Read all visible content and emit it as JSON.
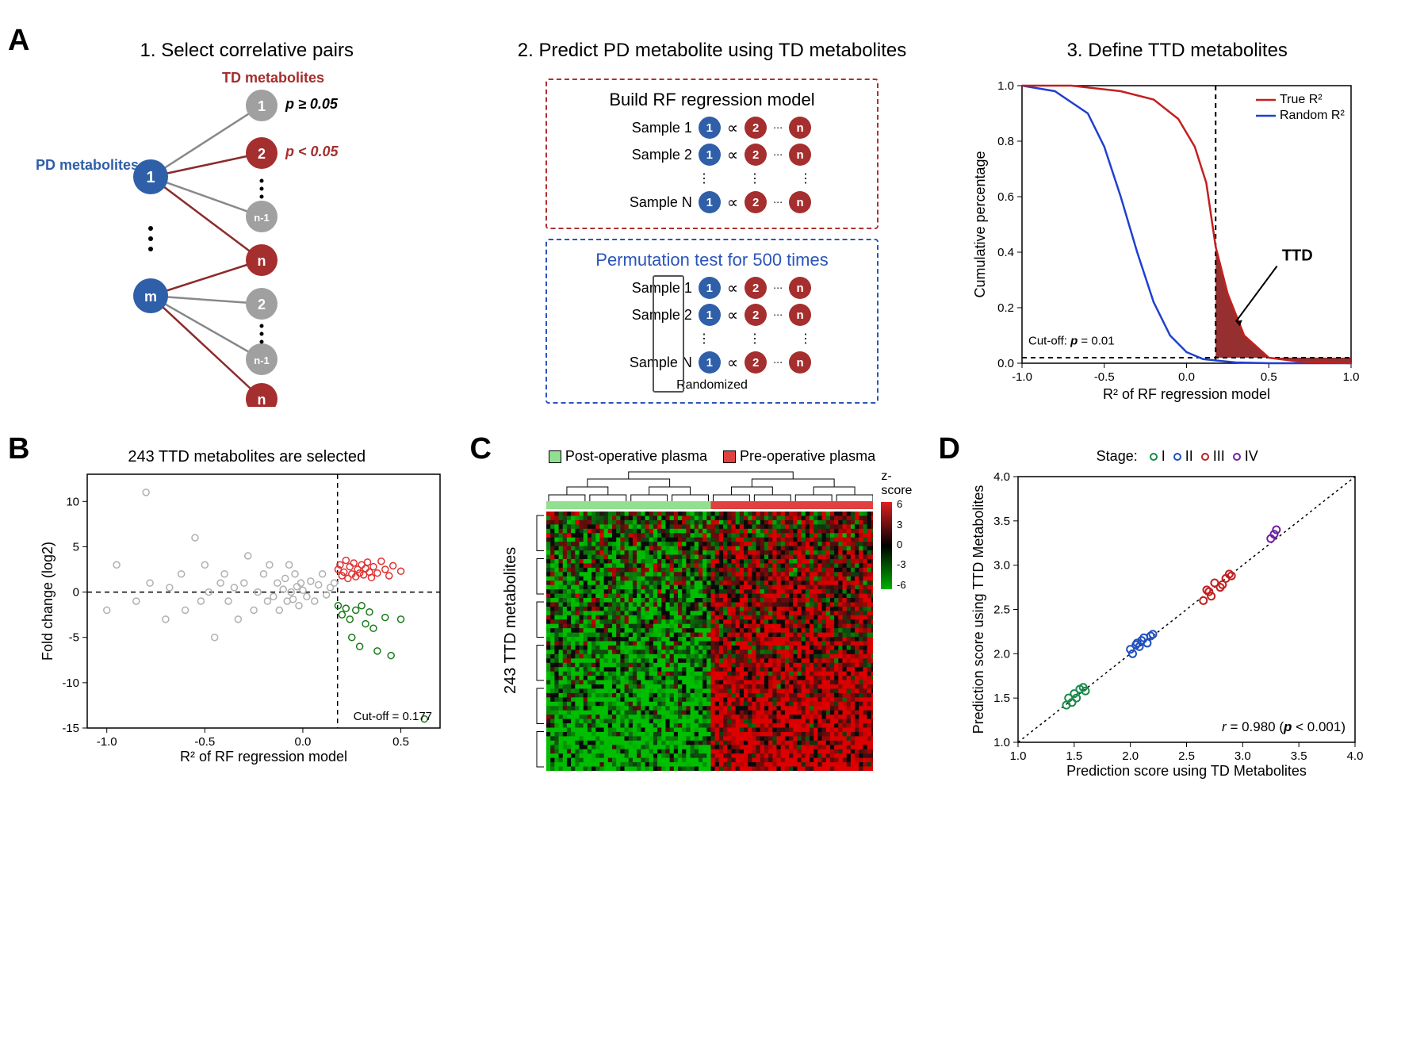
{
  "colors": {
    "blue_node": "#2f5fa8",
    "red_node": "#a52e2e",
    "grey_node": "#a0a0a0",
    "grey_line": "#888888",
    "sig_line": "#8b2b2b",
    "box_red": "#b03030",
    "box_blue": "#2b55b8",
    "true_curve": "#c22020",
    "random_curve": "#2040d0",
    "ttd_fill": "#8b1a1a",
    "scatter_grey": "#b0b0b0",
    "scatter_red": "#e03030",
    "scatter_green": "#1a7a1a",
    "stage_I": "#1a8a4a",
    "stage_II": "#2050c0",
    "stage_III": "#c02020",
    "stage_IV": "#7020a0",
    "hm_red": "#e02020",
    "hm_green": "#00a000",
    "hm_black": "#000000",
    "post_op": "#90e090",
    "pre_op": "#e04040"
  },
  "panelA": {
    "label": "A",
    "step1": {
      "title": "1. Select correlative pairs",
      "pd_label": "PD metabolites",
      "td_label": "TD metabolites",
      "p_ge": "p ≥ 0.05",
      "p_lt": "p < 0.05",
      "node_labels": [
        "1",
        "2",
        "n-1",
        "n",
        "m"
      ]
    },
    "step2": {
      "title": "2. Predict PD metabolite using TD metabolites",
      "box1_title": "Build RF regression model",
      "box2_title": "Permutation test for 500 times",
      "samples": [
        "Sample 1",
        "Sample 2",
        "Sample N"
      ],
      "randomized": "Randomized"
    },
    "step3": {
      "title": "3. Define TTD metabolites",
      "ylabel": "Cumulative percentage",
      "xlabel": "R² of RF regression model",
      "legend_true": "True R²",
      "legend_random": "Random R²",
      "ttd_label": "TTD",
      "cutoff_label": "Cut-off: p = 0.01",
      "xlim": [
        -1.0,
        1.0
      ],
      "ylim": [
        0.0,
        1.0
      ],
      "xticks": [
        -1.0,
        -0.5,
        0.0,
        0.5,
        1.0
      ],
      "yticks": [
        0.0,
        0.2,
        0.4,
        0.6,
        0.8,
        1.0
      ],
      "cutoff_x": 0.177,
      "cutoff_y": 0.02,
      "true_curve": [
        [
          -1.0,
          1.0
        ],
        [
          -0.7,
          1.0
        ],
        [
          -0.4,
          0.98
        ],
        [
          -0.2,
          0.95
        ],
        [
          -0.05,
          0.88
        ],
        [
          0.05,
          0.78
        ],
        [
          0.12,
          0.65
        ],
        [
          0.177,
          0.42
        ],
        [
          0.25,
          0.25
        ],
        [
          0.35,
          0.1
        ],
        [
          0.5,
          0.02
        ],
        [
          0.7,
          0.005
        ],
        [
          1.0,
          0.0
        ]
      ],
      "random_curve": [
        [
          -1.0,
          1.0
        ],
        [
          -0.8,
          0.98
        ],
        [
          -0.6,
          0.9
        ],
        [
          -0.5,
          0.78
        ],
        [
          -0.4,
          0.6
        ],
        [
          -0.3,
          0.4
        ],
        [
          -0.2,
          0.22
        ],
        [
          -0.1,
          0.1
        ],
        [
          0.0,
          0.04
        ],
        [
          0.1,
          0.015
        ],
        [
          0.177,
          0.01
        ],
        [
          0.3,
          0.003
        ],
        [
          0.5,
          0.0
        ],
        [
          1.0,
          0.0
        ]
      ]
    }
  },
  "panelB": {
    "label": "B",
    "title": "243 TTD metabolites are selected",
    "xlabel": "R² of RF regression model",
    "ylabel": "Fold change (log2)",
    "cutoff_label": "Cut-off = 0.177",
    "xlim": [
      -1.1,
      0.7
    ],
    "ylim": [
      -15,
      13
    ],
    "xticks": [
      -1.0,
      -0.5,
      0.0,
      0.5
    ],
    "yticks": [
      -15,
      -10,
      -5,
      0,
      5,
      10
    ],
    "cutoff_x": 0.177,
    "points_grey": [
      [
        -1.0,
        -2
      ],
      [
        -0.95,
        3
      ],
      [
        -0.85,
        -1
      ],
      [
        -0.8,
        11
      ],
      [
        -0.78,
        1
      ],
      [
        -0.7,
        -3
      ],
      [
        -0.68,
        0.5
      ],
      [
        -0.62,
        2
      ],
      [
        -0.6,
        -2
      ],
      [
        -0.55,
        6
      ],
      [
        -0.52,
        -1
      ],
      [
        -0.5,
        3
      ],
      [
        -0.48,
        0
      ],
      [
        -0.45,
        -5
      ],
      [
        -0.42,
        1
      ],
      [
        -0.4,
        2
      ],
      [
        -0.38,
        -1
      ],
      [
        -0.35,
        0.5
      ],
      [
        -0.33,
        -3
      ],
      [
        -0.3,
        1
      ],
      [
        -0.28,
        4
      ],
      [
        -0.25,
        -2
      ],
      [
        -0.23,
        0
      ],
      [
        -0.2,
        2
      ],
      [
        -0.18,
        -1
      ],
      [
        -0.17,
        3
      ],
      [
        -0.15,
        -0.5
      ],
      [
        -0.13,
        1
      ],
      [
        -0.12,
        -2
      ],
      [
        -0.1,
        0.3
      ],
      [
        -0.09,
        1.5
      ],
      [
        -0.08,
        -1
      ],
      [
        -0.07,
        3
      ],
      [
        -0.06,
        0
      ],
      [
        -0.05,
        -0.8
      ],
      [
        -0.04,
        2
      ],
      [
        -0.03,
        0.6
      ],
      [
        -0.02,
        -1.5
      ],
      [
        -0.01,
        1
      ],
      [
        0.0,
        0.2
      ],
      [
        0.02,
        -0.5
      ],
      [
        0.04,
        1.2
      ],
      [
        0.06,
        -1
      ],
      [
        0.08,
        0.8
      ],
      [
        0.1,
        2
      ],
      [
        0.12,
        -0.3
      ],
      [
        0.14,
        0.5
      ],
      [
        0.16,
        1
      ]
    ],
    "points_red": [
      [
        0.18,
        2.5
      ],
      [
        0.19,
        3
      ],
      [
        0.2,
        1.8
      ],
      [
        0.21,
        2.2
      ],
      [
        0.22,
        3.5
      ],
      [
        0.23,
        1.5
      ],
      [
        0.24,
        2.8
      ],
      [
        0.25,
        2
      ],
      [
        0.26,
        3.2
      ],
      [
        0.27,
        1.7
      ],
      [
        0.28,
        2.5
      ],
      [
        0.29,
        2.1
      ],
      [
        0.3,
        3
      ],
      [
        0.31,
        1.9
      ],
      [
        0.32,
        2.6
      ],
      [
        0.33,
        3.3
      ],
      [
        0.34,
        2.2
      ],
      [
        0.35,
        1.6
      ],
      [
        0.36,
        2.8
      ],
      [
        0.38,
        2.1
      ],
      [
        0.4,
        3.4
      ],
      [
        0.42,
        2.5
      ],
      [
        0.44,
        1.8
      ],
      [
        0.46,
        2.9
      ],
      [
        0.5,
        2.3
      ]
    ],
    "points_green": [
      [
        0.18,
        -1.5
      ],
      [
        0.2,
        -2.5
      ],
      [
        0.22,
        -1.8
      ],
      [
        0.24,
        -3
      ],
      [
        0.25,
        -5
      ],
      [
        0.27,
        -2
      ],
      [
        0.29,
        -6
      ],
      [
        0.3,
        -1.5
      ],
      [
        0.32,
        -3.5
      ],
      [
        0.34,
        -2.2
      ],
      [
        0.36,
        -4
      ],
      [
        0.38,
        -6.5
      ],
      [
        0.42,
        -2.8
      ],
      [
        0.45,
        -7
      ],
      [
        0.5,
        -3
      ],
      [
        0.62,
        -14
      ]
    ]
  },
  "panelC": {
    "label": "C",
    "legend_post": "Post-operative plasma",
    "legend_pre": "Pre-operative plasma",
    "ylabel": "243 TTD metabolites",
    "zscore_label": "z-score",
    "zticks": [
      6,
      3,
      0,
      -3,
      -6
    ],
    "n_cols": 80,
    "n_rows": 60,
    "post_count": 40
  },
  "panelD": {
    "label": "D",
    "stage_label": "Stage:",
    "stages": [
      "I",
      "II",
      "III",
      "IV"
    ],
    "xlabel": "Prediction score using TD Metabolites",
    "ylabel": "Prediction score using TTD Metabolites",
    "corr_label": "r = 0.980 (p < 0.001)",
    "xlim": [
      1.0,
      4.0
    ],
    "ylim": [
      1.0,
      4.0
    ],
    "ticks": [
      1.0,
      1.5,
      2.0,
      2.5,
      3.0,
      3.5,
      4.0
    ],
    "points_I": [
      [
        1.45,
        1.5
      ],
      [
        1.5,
        1.55
      ],
      [
        1.48,
        1.45
      ],
      [
        1.55,
        1.6
      ],
      [
        1.52,
        1.5
      ],
      [
        1.6,
        1.58
      ],
      [
        1.43,
        1.42
      ],
      [
        1.58,
        1.62
      ]
    ],
    "points_II": [
      [
        2.0,
        2.05
      ],
      [
        2.05,
        2.1
      ],
      [
        2.1,
        2.15
      ],
      [
        2.08,
        2.08
      ],
      [
        2.12,
        2.18
      ],
      [
        2.15,
        2.12
      ],
      [
        2.18,
        2.2
      ],
      [
        2.02,
        2.0
      ],
      [
        2.2,
        2.22
      ],
      [
        2.06,
        2.12
      ]
    ],
    "points_III": [
      [
        2.65,
        2.6
      ],
      [
        2.7,
        2.7
      ],
      [
        2.75,
        2.8
      ],
      [
        2.8,
        2.75
      ],
      [
        2.85,
        2.85
      ],
      [
        2.72,
        2.65
      ],
      [
        2.88,
        2.9
      ],
      [
        2.68,
        2.72
      ],
      [
        2.82,
        2.78
      ],
      [
        2.9,
        2.88
      ]
    ],
    "points_IV": [
      [
        3.25,
        3.3
      ],
      [
        3.3,
        3.4
      ],
      [
        3.28,
        3.35
      ]
    ]
  }
}
